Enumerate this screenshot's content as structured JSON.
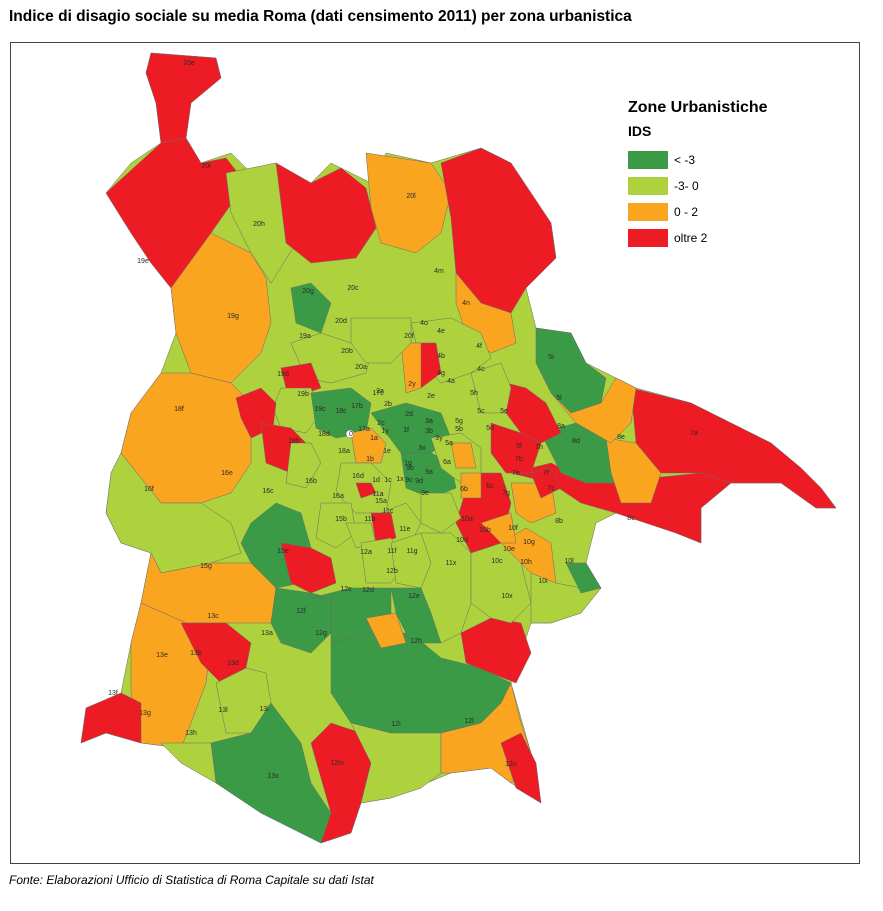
{
  "title": "Indice di disagio sociale su media Roma (dati censimento 2011) per zona urbanistica",
  "legend": {
    "title": "Zone Urbanistiche",
    "subtitle": "IDS",
    "items": [
      {
        "label": "< -3",
        "color": "#3a9a45"
      },
      {
        "label": "-3- 0",
        "color": "#aed13e"
      },
      {
        "label": "0 - 2",
        "color": "#f9a51f"
      },
      {
        "label": "oltre 2",
        "color": "#ed1c24"
      }
    ]
  },
  "source": "Fonte: Elaborazioni Ufficio di Statistica di Roma Capitale su dati Istat",
  "zones": [
    {
      "id": "20e",
      "cls": 3
    },
    {
      "id": "20i",
      "cls": 3
    },
    {
      "id": "20l",
      "cls": 2
    },
    {
      "id": "20h",
      "cls": 1
    },
    {
      "id": "20c",
      "cls": 1
    },
    {
      "id": "20g",
      "cls": 0
    },
    {
      "id": "20a",
      "cls": 0
    },
    {
      "id": "20b",
      "cls": 0
    },
    {
      "id": "20d",
      "cls": 1
    },
    {
      "id": "20f",
      "cls": 2
    },
    {
      "id": "19e",
      "cls": 3
    },
    {
      "id": "19g",
      "cls": 2
    },
    {
      "id": "19d",
      "cls": 1
    },
    {
      "id": "19b",
      "cls": 1
    },
    {
      "id": "19c",
      "cls": 0
    },
    {
      "id": "19a",
      "cls": 3
    },
    {
      "id": "18f",
      "cls": 2
    },
    {
      "id": "18b",
      "cls": 1
    },
    {
      "id": "18d",
      "cls": 1
    },
    {
      "id": "18c",
      "cls": 0
    },
    {
      "id": "18a",
      "cls": 1
    },
    {
      "id": "17a",
      "cls": 0
    },
    {
      "id": "17b",
      "cls": 0
    },
    {
      "id": "17c",
      "cls": 1
    },
    {
      "id": "16f",
      "cls": 1
    },
    {
      "id": "16e",
      "cls": 2
    },
    {
      "id": "16c",
      "cls": 0
    },
    {
      "id": "16b",
      "cls": 1
    },
    {
      "id": "16d",
      "cls": 1
    },
    {
      "id": "16a",
      "cls": 1
    },
    {
      "id": "15e",
      "cls": 0
    },
    {
      "id": "15g",
      "cls": 2
    },
    {
      "id": "15b",
      "cls": 1
    },
    {
      "id": "15a",
      "cls": 2
    },
    {
      "id": "13a",
      "cls": 0
    },
    {
      "id": "13b",
      "cls": 3
    },
    {
      "id": "13c",
      "cls": 3
    },
    {
      "id": "13d",
      "cls": 1
    },
    {
      "id": "13e",
      "cls": 2
    },
    {
      "id": "13f",
      "cls": 3
    },
    {
      "id": "13g",
      "cls": 2
    },
    {
      "id": "13h",
      "cls": 1
    },
    {
      "id": "13i",
      "cls": 0
    },
    {
      "id": "13l",
      "cls": 0
    },
    {
      "id": "13x",
      "cls": 0
    },
    {
      "id": "12a",
      "cls": 0
    },
    {
      "id": "12b",
      "cls": 0
    },
    {
      "id": "12c",
      "cls": 0
    },
    {
      "id": "12d",
      "cls": 2
    },
    {
      "id": "12e",
      "cls": 0
    },
    {
      "id": "12f",
      "cls": 0
    },
    {
      "id": "12g",
      "cls": 1
    },
    {
      "id": "12h",
      "cls": 0
    },
    {
      "id": "12i",
      "cls": 1
    },
    {
      "id": "12l",
      "cls": 2
    },
    {
      "id": "12m",
      "cls": 3
    },
    {
      "id": "12n",
      "cls": 3
    },
    {
      "id": "11a",
      "cls": 1
    },
    {
      "id": "11b",
      "cls": 1
    },
    {
      "id": "11c",
      "cls": 1
    },
    {
      "id": "11e",
      "cls": 1
    },
    {
      "id": "11f",
      "cls": 0
    },
    {
      "id": "11g",
      "cls": 0
    },
    {
      "id": "11x",
      "cls": 1
    },
    {
      "id": "10a",
      "cls": 1
    },
    {
      "id": "10b",
      "cls": 2
    },
    {
      "id": "10c",
      "cls": 1
    },
    {
      "id": "10d",
      "cls": 1
    },
    {
      "id": "10e",
      "cls": 0
    },
    {
      "id": "10f",
      "cls": 1
    },
    {
      "id": "10g",
      "cls": 2
    },
    {
      "id": "10h",
      "cls": 2
    },
    {
      "id": "10i",
      "cls": 1
    },
    {
      "id": "10l",
      "cls": 0
    },
    {
      "id": "10x",
      "cls": 1
    },
    {
      "id": "9a",
      "cls": 1
    },
    {
      "id": "9b",
      "cls": 0
    },
    {
      "id": "9c",
      "cls": 1
    },
    {
      "id": "9d",
      "cls": 1
    },
    {
      "id": "9e",
      "cls": 1
    },
    {
      "id": "8a",
      "cls": 3
    },
    {
      "id": "8b",
      "cls": 3
    },
    {
      "id": "8c",
      "cls": 3
    },
    {
      "id": "8d",
      "cls": 0
    },
    {
      "id": "8e",
      "cls": 2
    },
    {
      "id": "7a",
      "cls": 3
    },
    {
      "id": "7b",
      "cls": 1
    },
    {
      "id": "7c",
      "cls": 3
    },
    {
      "id": "7e",
      "cls": 2
    },
    {
      "id": "7f",
      "cls": 2
    },
    {
      "id": "7g",
      "cls": 2
    },
    {
      "id": "7h",
      "cls": 0
    },
    {
      "id": "6a",
      "cls": 3
    },
    {
      "id": "6b",
      "cls": 3
    },
    {
      "id": "6c",
      "cls": 3
    },
    {
      "id": "5a",
      "cls": 2
    },
    {
      "id": "5b",
      "cls": 1
    },
    {
      "id": "5c",
      "cls": 3
    },
    {
      "id": "5d",
      "cls": 2
    },
    {
      "id": "5e",
      "cls": 3
    },
    {
      "id": "5f",
      "cls": 3
    },
    {
      "id": "5g",
      "cls": 2
    },
    {
      "id": "5h",
      "cls": 1
    },
    {
      "id": "5i",
      "cls": 0
    },
    {
      "id": "5l",
      "cls": 2
    },
    {
      "id": "4a",
      "cls": 0
    },
    {
      "id": "4b",
      "cls": 1
    },
    {
      "id": "4c",
      "cls": 1
    },
    {
      "id": "4e",
      "cls": 1
    },
    {
      "id": "4f",
      "cls": 1
    },
    {
      "id": "4g",
      "cls": 1
    },
    {
      "id": "4m",
      "cls": 1
    },
    {
      "id": "4n",
      "cls": 2
    },
    {
      "id": "4o",
      "cls": 3
    },
    {
      "id": "3a",
      "cls": 0
    },
    {
      "id": "3b",
      "cls": 0
    },
    {
      "id": "3y",
      "cls": 2
    },
    {
      "id": "3x",
      "cls": 1
    },
    {
      "id": "2a",
      "cls": 1
    },
    {
      "id": "2b",
      "cls": 0
    },
    {
      "id": "2c",
      "cls": 0
    },
    {
      "id": "2d",
      "cls": 0
    },
    {
      "id": "2e",
      "cls": 0
    },
    {
      "id": "2y",
      "cls": 0
    },
    {
      "id": "1a",
      "cls": 1
    },
    {
      "id": "1b",
      "cls": 1
    },
    {
      "id": "1c",
      "cls": 0
    },
    {
      "id": "1d",
      "cls": 2
    },
    {
      "id": "1e",
      "cls": 1
    },
    {
      "id": "1f",
      "cls": 1
    },
    {
      "id": "1g",
      "cls": 1
    },
    {
      "id": "1x",
      "cls": 1
    },
    {
      "id": "1y",
      "cls": 1
    },
    {
      "id": "0",
      "cls": 1
    }
  ]
}
